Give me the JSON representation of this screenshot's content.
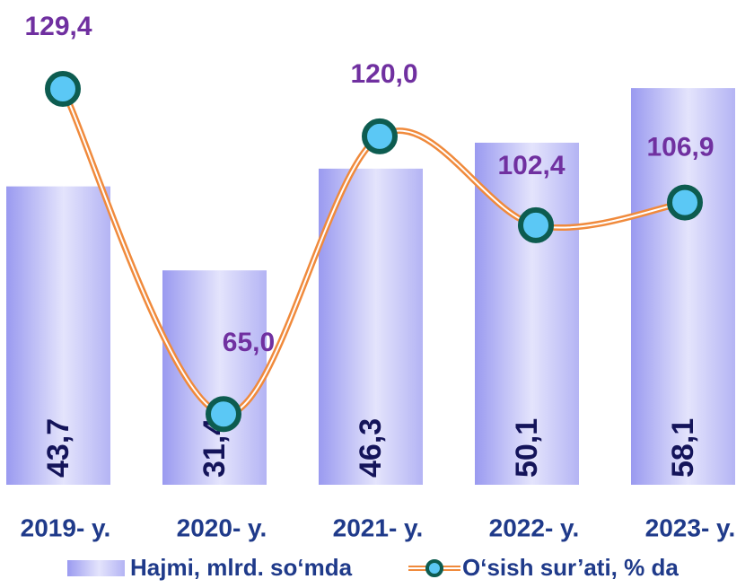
{
  "chart_data": {
    "type": "combo",
    "categories": [
      "2019- y.",
      "2020- y.",
      "2021- y.",
      "2022- y.",
      "2023- y."
    ],
    "series": [
      {
        "name": "Hajmi, mlrd. so‘mda",
        "type": "bar",
        "color": "#b8b8f8",
        "values": [
          43.7,
          31.4,
          46.3,
          50.1,
          58.1
        ],
        "value_labels": [
          "43,7",
          "31,4",
          "46,3",
          "50,1",
          "58,1"
        ]
      },
      {
        "name": "O‘sish sur’ati, % da",
        "type": "line",
        "axis": "y2",
        "color": "#f08a3c",
        "values": [
          129.4,
          65.0,
          120.0,
          102.4,
          106.9
        ],
        "value_labels": [
          "129,4",
          "65,0",
          "120,0",
          "102,4",
          "106,9"
        ]
      }
    ],
    "ylim": [
      0,
      71
    ],
    "y2lim": [
      51,
      147
    ],
    "legend": "bottom"
  }
}
